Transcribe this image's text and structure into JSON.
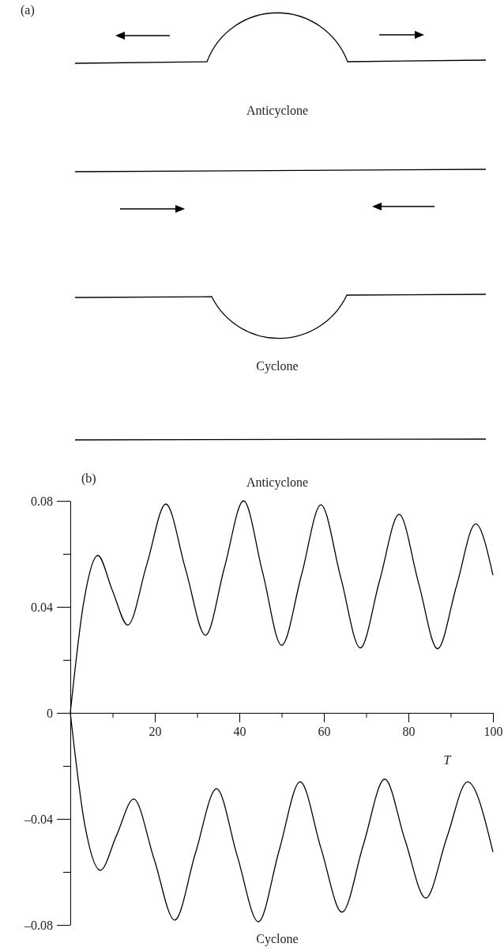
{
  "chart_data": [
    {
      "type": "other",
      "title": "(a)",
      "annotations": [
        "Anticyclone",
        "Cyclone"
      ]
    },
    {
      "type": "line",
      "title": "(b)",
      "xlabel": "T",
      "xlim": [
        0,
        100
      ],
      "xticks": [
        {
          "value": 10,
          "label": null
        },
        20,
        {
          "value": 30,
          "label": null
        },
        40,
        {
          "value": 50,
          "label": null
        },
        60,
        {
          "value": 70,
          "label": null
        },
        80,
        {
          "value": 90,
          "label": null
        },
        100
      ],
      "ylim": [
        -0.08,
        0.08
      ],
      "yticks": [
        {
          "value": -0.08,
          "label": "–0.08"
        },
        {
          "value": -0.06,
          "label": null
        },
        {
          "value": -0.04,
          "label": "–0.04"
        },
        {
          "value": -0.02,
          "label": null
        },
        0,
        {
          "value": 0.02,
          "label": null
        },
        0.04,
        {
          "value": 0.06,
          "label": null
        },
        0.08
      ],
      "legend": false,
      "grid": false,
      "marker": "none",
      "line_style": "solid",
      "series": [
        {
          "name": "Anticyclone",
          "color": "#000000",
          "x": [
            0,
            3.2,
            6.5,
            10,
            13.6,
            18.1,
            22.6,
            27.3,
            32,
            36.5,
            41,
            45.5,
            50,
            54.7,
            59.3,
            64,
            68.6,
            73.2,
            77.8,
            82.4,
            86.9,
            91.4,
            95.9,
            100
          ],
          "values": [
            0,
            0.042,
            0.0594,
            0.046,
            0.0331,
            0.056,
            0.0788,
            0.054,
            0.0293,
            0.055,
            0.08,
            0.053,
            0.0255,
            0.052,
            0.0785,
            0.051,
            0.0245,
            0.05,
            0.0749,
            0.049,
            0.0242,
            0.048,
            0.0713,
            0.052
          ]
        },
        {
          "name": "Cyclone",
          "color": "#000000",
          "x": [
            0,
            3.4,
            7.1,
            11,
            15,
            19.8,
            24.7,
            29.6,
            34.6,
            39.5,
            44.5,
            49.4,
            54.4,
            59.3,
            64.3,
            69.3,
            74.4,
            79.2,
            84.1,
            89.1,
            94,
            100
          ],
          "values": [
            0,
            -0.042,
            -0.0594,
            -0.046,
            -0.0325,
            -0.055,
            -0.0782,
            -0.053,
            -0.0286,
            -0.054,
            -0.0788,
            -0.052,
            -0.026,
            -0.051,
            -0.0752,
            -0.05,
            -0.025,
            -0.048,
            -0.0699,
            -0.047,
            -0.026,
            -0.0525
          ]
        }
      ]
    }
  ]
}
